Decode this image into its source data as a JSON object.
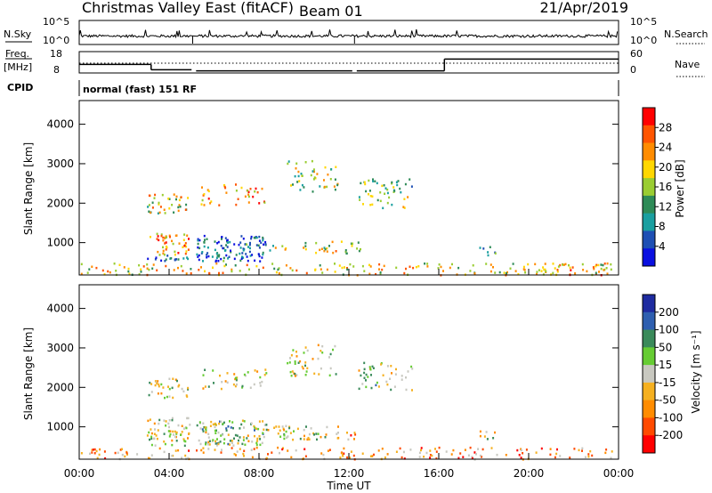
{
  "header": {
    "radar": "Christmas Valley East (fitACF)",
    "beam": "Beam 01",
    "date": "21/Apr/2019"
  },
  "chart_data": [
    {
      "type": "line",
      "name": "noise-panel",
      "left_label": "N.Sky",
      "right_label": "N.Search",
      "left_ticks": [
        "10^5",
        "10^0"
      ],
      "right_ticks": [
        "10^5",
        "10^0"
      ]
    },
    {
      "type": "line",
      "name": "freq-panel",
      "left_label_1": "Freq.",
      "left_label_2": "[MHz]",
      "right_label": "Nave",
      "left_ticks": [
        "18",
        "8"
      ],
      "right_ticks": [
        "60",
        "0"
      ],
      "freq_steps": [
        {
          "x": [
            0,
            3.2
          ],
          "y": 12
        },
        {
          "x": [
            3.2,
            5.0
          ],
          "y": 9.5
        },
        {
          "x": [
            5.2,
            12.15
          ],
          "y": 9
        },
        {
          "x": [
            12.35,
            16.25
          ],
          "y": 9
        },
        {
          "x": [
            16.25,
            24
          ],
          "y": 14.5
        }
      ]
    },
    {
      "type": "text",
      "name": "cpid-row",
      "label": "CPID",
      "program": "normal (fast) 151 RF"
    },
    {
      "type": "heatmap",
      "name": "power-panel",
      "ylabel": "Slant Range [km]",
      "yticks": [
        1000,
        2000,
        3000,
        4000
      ],
      "ylim": [
        180,
        4600
      ],
      "xlim": [
        0,
        24
      ],
      "colorbar_label": "Power [dB]",
      "colorbar_ticks": [
        "28",
        "24",
        "20",
        "16",
        "12",
        "8",
        "4"
      ],
      "colorbar_colors": [
        "#ff0000",
        "#ff5500",
        "#ff8c00",
        "#ffd700",
        "#9acd32",
        "#2e8b57",
        "#1a9fa0",
        "#1e4fb4",
        "#0a10e0"
      ],
      "echo_regions": [
        {
          "x": [
            3.0,
            4.9
          ],
          "y": [
            550,
            700
          ],
          "level": 0.82,
          "density": 0.7
        },
        {
          "x": [
            3.0,
            4.9
          ],
          "y": [
            700,
            1250
          ],
          "level": 0.3,
          "density": 0.55
        },
        {
          "x": [
            3.0,
            4.9
          ],
          "y": [
            1750,
            2250
          ],
          "level": 0.45,
          "density": 0.5
        },
        {
          "x": [
            5.2,
            8.3
          ],
          "y": [
            550,
            1200
          ],
          "level": 0.8,
          "density": 0.75
        },
        {
          "x": [
            8.3,
            9.2
          ],
          "y": [
            750,
            950
          ],
          "level": 0.45,
          "density": 0.4
        },
        {
          "x": [
            5.4,
            8.3
          ],
          "y": [
            1950,
            2500
          ],
          "level": 0.25,
          "density": 0.3
        },
        {
          "x": [
            9.2,
            11.5
          ],
          "y": [
            2300,
            3100
          ],
          "level": 0.5,
          "density": 0.3
        },
        {
          "x": [
            12.4,
            14.8
          ],
          "y": [
            1900,
            2650
          ],
          "level": 0.55,
          "density": 0.35
        },
        {
          "x": [
            9.8,
            12.5
          ],
          "y": [
            750,
            1050
          ],
          "level": 0.45,
          "density": 0.45
        },
        {
          "x": [
            17.8,
            18.5
          ],
          "y": [
            700,
            950
          ],
          "level": 0.7,
          "density": 0.5
        },
        {
          "x": [
            0,
            24
          ],
          "y": [
            200,
            500
          ],
          "level": 0.35,
          "density": 0.35
        }
      ]
    },
    {
      "type": "heatmap",
      "name": "velocity-panel",
      "ylabel": "Slant Range [km]",
      "yticks": [
        1000,
        2000,
        3000,
        4000
      ],
      "ylim": [
        180,
        4600
      ],
      "xlim": [
        0,
        24
      ],
      "xticks": [
        "00:00",
        "04:00",
        "08:00",
        "12:00",
        "16:00",
        "20:00",
        "00:00"
      ],
      "xlabel": "Time UT",
      "colorbar_label": "Velocity [m s⁻¹]",
      "colorbar_ticks": [
        "200",
        "100",
        "50",
        "15",
        "-15",
        "-50",
        "-100",
        "-200"
      ],
      "colorbar_colors": [
        "#1e2ba0",
        "#2e5fb0",
        "#3a8a5a",
        "#66cc33",
        "#c8c8c0",
        "#f5b020",
        "#ff8c00",
        "#ff4a00",
        "#ff0000"
      ],
      "echo_regions": [
        {
          "x": [
            3.0,
            4.9
          ],
          "y": [
            550,
            1250
          ],
          "level": 0.5,
          "density": 0.6
        },
        {
          "x": [
            3.0,
            4.9
          ],
          "y": [
            1750,
            2250
          ],
          "level": 0.5,
          "density": 0.45
        },
        {
          "x": [
            5.2,
            8.3
          ],
          "y": [
            550,
            1200
          ],
          "level": 0.45,
          "density": 0.7
        },
        {
          "x": [
            8.3,
            11.5
          ],
          "y": [
            700,
            1050
          ],
          "level": 0.5,
          "density": 0.55
        },
        {
          "x": [
            11.5,
            12.3
          ],
          "y": [
            700,
            900
          ],
          "level": 0.7,
          "density": 0.5
        },
        {
          "x": [
            5.4,
            8.3
          ],
          "y": [
            1950,
            2500
          ],
          "level": 0.5,
          "density": 0.3
        },
        {
          "x": [
            9.2,
            11.5
          ],
          "y": [
            2300,
            3100
          ],
          "level": 0.5,
          "density": 0.3
        },
        {
          "x": [
            12.4,
            14.8
          ],
          "y": [
            1900,
            2650
          ],
          "level": 0.45,
          "density": 0.3
        },
        {
          "x": [
            17.8,
            18.5
          ],
          "y": [
            700,
            950
          ],
          "level": 0.5,
          "density": 0.5
        },
        {
          "x": [
            0,
            24
          ],
          "y": [
            200,
            500
          ],
          "level": 0.7,
          "density": 0.3
        }
      ]
    }
  ]
}
